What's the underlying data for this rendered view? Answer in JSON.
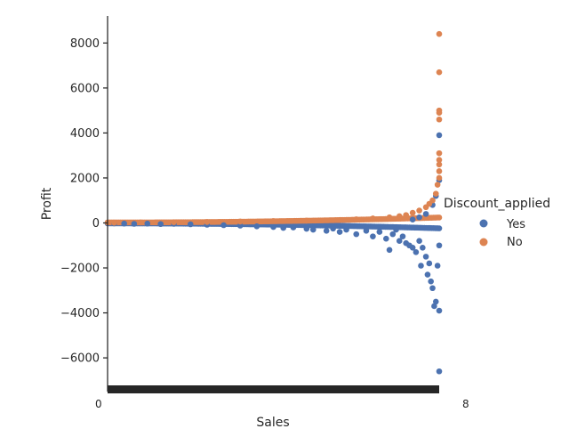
{
  "chart_data": {
    "type": "scatter",
    "style": "categorical strip plot with overplotted points; x categories are unique Sales values in ascending order",
    "title": "",
    "xlabel": "Sales",
    "ylabel": "Profit",
    "ylim": [
      -7500,
      9200
    ],
    "yticks": [
      -6000,
      -4000,
      -2000,
      0,
      2000,
      4000,
      6000,
      8000
    ],
    "ytick_labels": [
      "−6000",
      "−4000",
      "−2000",
      "0",
      "2000",
      "4000",
      "6000",
      "8000"
    ],
    "x_category_range_fraction": [
      0,
      1
    ],
    "xtick_first_label": "0",
    "xtick_last_label": "8",
    "grid": false,
    "legend": {
      "title": "Discount_applied",
      "placement": "right",
      "entries": [
        "Yes",
        "No"
      ]
    },
    "series": [
      {
        "name": "Yes",
        "color": "#4c72b0",
        "description_fraction_position": "x as fraction of category axis (0 = lowest Sales, 1 = highest)",
        "points": [
          {
            "x": 0.02,
            "y": -20
          },
          {
            "x": 0.05,
            "y": -30
          },
          {
            "x": 0.08,
            "y": -40
          },
          {
            "x": 0.12,
            "y": -30
          },
          {
            "x": 0.16,
            "y": -50
          },
          {
            "x": 0.2,
            "y": -40
          },
          {
            "x": 0.25,
            "y": -60
          },
          {
            "x": 0.3,
            "y": -80
          },
          {
            "x": 0.35,
            "y": -100
          },
          {
            "x": 0.4,
            "y": -120
          },
          {
            "x": 0.45,
            "y": -150
          },
          {
            "x": 0.5,
            "y": -180
          },
          {
            "x": 0.53,
            "y": -220
          },
          {
            "x": 0.56,
            "y": -200
          },
          {
            "x": 0.6,
            "y": -260
          },
          {
            "x": 0.62,
            "y": -300
          },
          {
            "x": 0.66,
            "y": -350
          },
          {
            "x": 0.68,
            "y": -250
          },
          {
            "x": 0.7,
            "y": -400
          },
          {
            "x": 0.72,
            "y": -300
          },
          {
            "x": 0.75,
            "y": -500
          },
          {
            "x": 0.78,
            "y": -350
          },
          {
            "x": 0.8,
            "y": -600
          },
          {
            "x": 0.82,
            "y": -400
          },
          {
            "x": 0.84,
            "y": -700
          },
          {
            "x": 0.85,
            "y": -1200
          },
          {
            "x": 0.86,
            "y": -500
          },
          {
            "x": 0.87,
            "y": -300
          },
          {
            "x": 0.88,
            "y": -800
          },
          {
            "x": 0.89,
            "y": -600
          },
          {
            "x": 0.9,
            "y": -900
          },
          {
            "x": 0.91,
            "y": -1000
          },
          {
            "x": 0.92,
            "y": -1100
          },
          {
            "x": 0.93,
            "y": -1300
          },
          {
            "x": 0.94,
            "y": -800
          },
          {
            "x": 0.945,
            "y": -1900
          },
          {
            "x": 0.95,
            "y": -1100
          },
          {
            "x": 0.96,
            "y": -1500
          },
          {
            "x": 0.965,
            "y": -2300
          },
          {
            "x": 0.97,
            "y": -1800
          },
          {
            "x": 0.975,
            "y": -2600
          },
          {
            "x": 0.98,
            "y": -2900
          },
          {
            "x": 0.985,
            "y": -3700
          },
          {
            "x": 0.99,
            "y": -3500
          },
          {
            "x": 0.995,
            "y": -1900
          },
          {
            "x": 1.0,
            "y": -3900
          },
          {
            "x": 1.0,
            "y": -6600
          },
          {
            "x": 1.0,
            "y": -1000
          },
          {
            "x": 1.0,
            "y": 3900
          },
          {
            "x": 1.0,
            "y": 1900
          },
          {
            "x": 0.99,
            "y": 1200
          },
          {
            "x": 0.98,
            "y": 800
          },
          {
            "x": 0.96,
            "y": 400
          },
          {
            "x": 0.94,
            "y": 250
          },
          {
            "x": 0.92,
            "y": 150
          }
        ]
      },
      {
        "name": "No",
        "color": "#dd8452",
        "points": [
          {
            "x": 0.02,
            "y": 10
          },
          {
            "x": 0.1,
            "y": 20
          },
          {
            "x": 0.2,
            "y": 30
          },
          {
            "x": 0.3,
            "y": 40
          },
          {
            "x": 0.4,
            "y": 60
          },
          {
            "x": 0.5,
            "y": 80
          },
          {
            "x": 0.6,
            "y": 100
          },
          {
            "x": 0.7,
            "y": 130
          },
          {
            "x": 0.75,
            "y": 160
          },
          {
            "x": 0.8,
            "y": 200
          },
          {
            "x": 0.85,
            "y": 250
          },
          {
            "x": 0.88,
            "y": 300
          },
          {
            "x": 0.9,
            "y": 350
          },
          {
            "x": 0.92,
            "y": 450
          },
          {
            "x": 0.94,
            "y": 550
          },
          {
            "x": 0.96,
            "y": 700
          },
          {
            "x": 0.97,
            "y": 850
          },
          {
            "x": 0.98,
            "y": 1000
          },
          {
            "x": 0.99,
            "y": 1300
          },
          {
            "x": 0.995,
            "y": 1700
          },
          {
            "x": 1.0,
            "y": 2000
          },
          {
            "x": 1.0,
            "y": 2300
          },
          {
            "x": 1.0,
            "y": 2600
          },
          {
            "x": 1.0,
            "y": 2800
          },
          {
            "x": 1.0,
            "y": 3100
          },
          {
            "x": 1.0,
            "y": 4600
          },
          {
            "x": 1.0,
            "y": 4900
          },
          {
            "x": 1.0,
            "y": 5000
          },
          {
            "x": 1.0,
            "y": 6700
          },
          {
            "x": 1.0,
            "y": 8400
          }
        ]
      }
    ]
  }
}
